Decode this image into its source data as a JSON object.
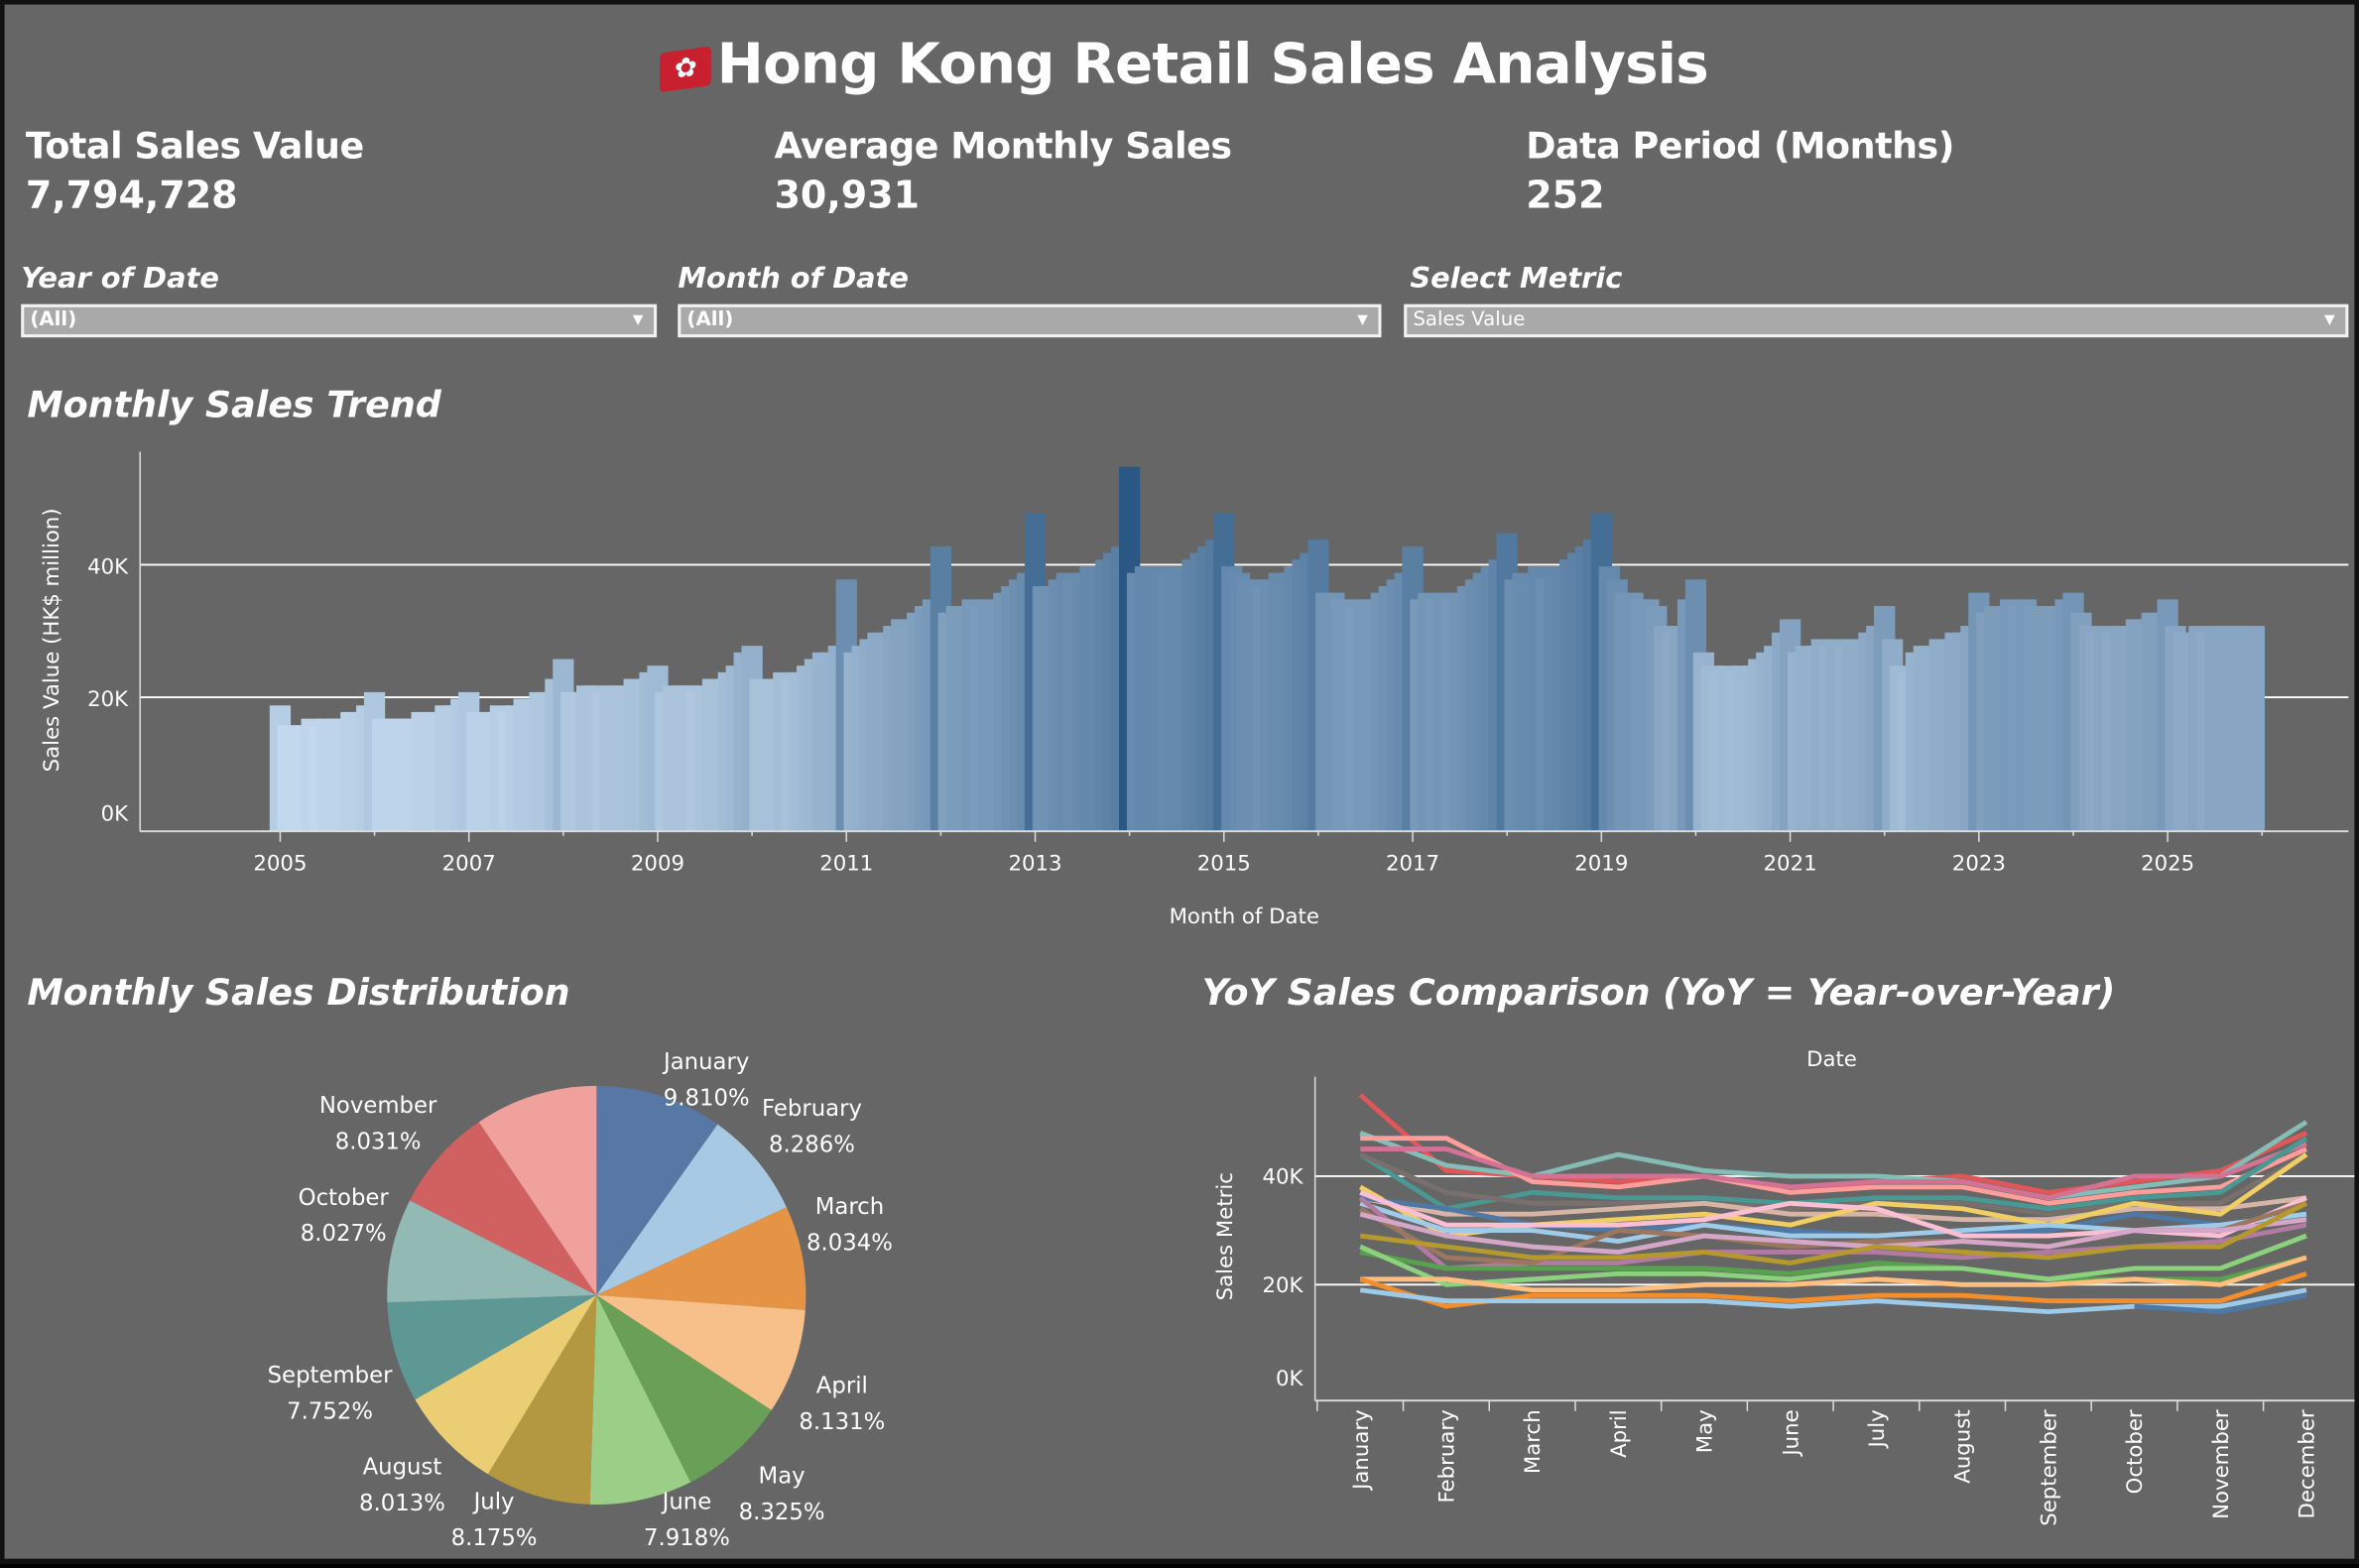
{
  "header": {
    "title": "Hong Kong Retail Sales Analysis",
    "flag_icon": "hong-kong-flag-icon"
  },
  "kpis": [
    {
      "label": "Total Sales Value",
      "value": "7,794,728"
    },
    {
      "label": "Average Monthly Sales",
      "value": "30,931"
    },
    {
      "label": "Data Period (Months)",
      "value": "252"
    }
  ],
  "filters": [
    {
      "label": "Year of Date",
      "value": "(All)"
    },
    {
      "label": "Month of Date",
      "value": "(All)"
    },
    {
      "label": "Select Metric",
      "value": "Sales Value"
    }
  ],
  "trend": {
    "title": "Monthly Sales Trend",
    "chart_data": {
      "type": "bar",
      "xlabel": "Month of Date",
      "ylabel": "Sales Value (HK$ million)",
      "ylim": [
        0,
        57000
      ],
      "yticks": [
        "0K",
        "20K",
        "40K"
      ],
      "xticks": [
        "2005",
        "2007",
        "2009",
        "2011",
        "2013",
        "2015",
        "2017",
        "2019",
        "2021",
        "2023",
        "2025"
      ],
      "grid": true,
      "color_ramp": [
        "#c6dbef",
        "#2a5783"
      ],
      "start_year": 2005,
      "values_k": [
        [
          19,
          16,
          16,
          16,
          17,
          16,
          17,
          17,
          17,
          18,
          18,
          19
        ],
        [
          21,
          17,
          17,
          17,
          17,
          17,
          18,
          18,
          18,
          19,
          19,
          20
        ],
        [
          21,
          18,
          18,
          18,
          19,
          18,
          19,
          20,
          20,
          21,
          21,
          23
        ],
        [
          26,
          21,
          21,
          22,
          22,
          21,
          22,
          22,
          22,
          23,
          23,
          24
        ],
        [
          25,
          21,
          22,
          22,
          22,
          21,
          22,
          23,
          23,
          24,
          25,
          27
        ],
        [
          28,
          23,
          23,
          23,
          24,
          23,
          24,
          25,
          26,
          27,
          27,
          28
        ],
        [
          38,
          27,
          28,
          29,
          30,
          30,
          31,
          32,
          32,
          33,
          34,
          35
        ],
        [
          43,
          33,
          34,
          34,
          35,
          34,
          35,
          35,
          36,
          37,
          38,
          39
        ],
        [
          48,
          37,
          37,
          38,
          39,
          38,
          39,
          40,
          40,
          41,
          42,
          43
        ],
        [
          55,
          39,
          40,
          40,
          40,
          39,
          40,
          40,
          41,
          42,
          43,
          44
        ],
        [
          48,
          40,
          39,
          38,
          38,
          37,
          38,
          39,
          39,
          40,
          41,
          42
        ],
        [
          44,
          36,
          36,
          35,
          35,
          34,
          35,
          35,
          36,
          37,
          38,
          39
        ],
        [
          43,
          35,
          36,
          35,
          36,
          35,
          36,
          37,
          38,
          39,
          40,
          41
        ],
        [
          45,
          38,
          39,
          39,
          40,
          38,
          40,
          40,
          41,
          42,
          43,
          44
        ],
        [
          48,
          40,
          38,
          36,
          36,
          35,
          35,
          34,
          31,
          30,
          31,
          35
        ],
        [
          38,
          27,
          25,
          24,
          25,
          24,
          25,
          25,
          26,
          27,
          28,
          30
        ],
        [
          32,
          27,
          28,
          28,
          29,
          28,
          29,
          28,
          29,
          29,
          30,
          31
        ],
        [
          34,
          29,
          25,
          24,
          27,
          28,
          28,
          29,
          29,
          30,
          30,
          31
        ],
        [
          36,
          33,
          34,
          34,
          35,
          34,
          35,
          34,
          34,
          34,
          34,
          35
        ],
        [
          36,
          33,
          31,
          30,
          31,
          30,
          31,
          31,
          32,
          32,
          33,
          33
        ],
        [
          35,
          31,
          30,
          30,
          31,
          30,
          31,
          31,
          31,
          31,
          31,
          31
        ]
      ]
    }
  },
  "distribution": {
    "title": "Monthly Sales Distribution",
    "chart_data": {
      "type": "pie",
      "slices": [
        {
          "label": "January",
          "pct": "9.810%",
          "value": 9.81,
          "color": "#5778a4"
        },
        {
          "label": "February",
          "pct": "8.286%",
          "value": 8.286,
          "color": "#a8c9e4"
        },
        {
          "label": "March",
          "pct": "8.034%",
          "value": 8.034,
          "color": "#e49444"
        },
        {
          "label": "April",
          "pct": "8.131%",
          "value": 8.131,
          "color": "#f7c08a"
        },
        {
          "label": "May",
          "pct": "8.325%",
          "value": 8.325,
          "color": "#6a9f58"
        },
        {
          "label": "June",
          "pct": "7.918%",
          "value": 7.918,
          "color": "#9bcf88"
        },
        {
          "label": "July",
          "pct": "8.175%",
          "value": 8.175,
          "color": "#b39841"
        },
        {
          "label": "August",
          "pct": "8.013%",
          "value": 8.013,
          "color": "#ebcd74"
        },
        {
          "label": "September",
          "pct": "7.752%",
          "value": 7.752,
          "color": "#5d9894"
        },
        {
          "label": "October",
          "pct": "8.027%",
          "value": 8.027,
          "color": "#93b9b5"
        },
        {
          "label": "November",
          "pct": "8.031%",
          "value": 8.031,
          "color": "#d16160"
        },
        {
          "value": 9.498,
          "color": "#f1a19c"
        }
      ]
    }
  },
  "yoy": {
    "title": "YoY Sales Comparison (YoY = Year-over-Year)",
    "chart_data": {
      "type": "line",
      "title": "Date",
      "ylabel": "Sales Metric",
      "ylim": [
        0,
        57000
      ],
      "yticks": [
        "0K",
        "20K",
        "40K"
      ],
      "categories": [
        "January",
        "February",
        "March",
        "April",
        "May",
        "June",
        "July",
        "August",
        "September",
        "October",
        "November",
        "December"
      ],
      "series": [
        {
          "color": "#e15759",
          "values_k": [
            55,
            41,
            40,
            39,
            40,
            37,
            39,
            40,
            37,
            39,
            41,
            48
          ]
        },
        {
          "color": "#86bcb6",
          "values_k": [
            48,
            42,
            40,
            44,
            41,
            40,
            40,
            39,
            36,
            38,
            40,
            50
          ]
        },
        {
          "color": "#ff9d9a",
          "values_k": [
            47,
            47,
            39,
            38,
            40,
            37,
            38,
            38,
            35,
            37,
            38,
            45
          ]
        },
        {
          "color": "#d37295",
          "values_k": [
            45,
            45,
            40,
            40,
            40,
            38,
            39,
            39,
            36,
            40,
            40,
            46
          ]
        },
        {
          "color": "#499894",
          "values_k": [
            44,
            34,
            37,
            36,
            36,
            35,
            36,
            36,
            34,
            36,
            37,
            47
          ]
        },
        {
          "color": "#79706e",
          "values_k": [
            44,
            37,
            35,
            35,
            35,
            34,
            35,
            35,
            33,
            35,
            35,
            44
          ]
        },
        {
          "color": "#d7b5a6",
          "values_k": [
            36,
            33,
            33,
            34,
            35,
            33,
            33,
            32,
            32,
            34,
            34,
            36
          ]
        },
        {
          "color": "#f1ce63",
          "values_k": [
            38,
            29,
            31,
            32,
            33,
            31,
            35,
            34,
            31,
            35,
            33,
            44
          ]
        },
        {
          "color": "#4e79a7",
          "values_k": [
            36,
            34,
            31,
            30,
            31,
            30,
            29,
            30,
            30,
            33,
            31,
            33
          ]
        },
        {
          "color": "#a0cbe8",
          "values_k": [
            35,
            30,
            30,
            28,
            31,
            29,
            29,
            30,
            31,
            30,
            31,
            33
          ]
        },
        {
          "color": "#fabfd2",
          "values_k": [
            37,
            31,
            31,
            31,
            32,
            35,
            34,
            29,
            29,
            30,
            29,
            36
          ]
        },
        {
          "color": "#b07aa1",
          "values_k": [
            36,
            23,
            24,
            24,
            26,
            26,
            26,
            25,
            26,
            27,
            28,
            31
          ]
        },
        {
          "color": "#9d7660",
          "values_k": [
            34,
            25,
            24,
            30,
            29,
            27,
            28,
            28,
            27,
            30,
            30,
            35
          ]
        },
        {
          "color": "#d4a6c8",
          "values_k": [
            33,
            29,
            27,
            26,
            29,
            28,
            27,
            28,
            27,
            30,
            30,
            32
          ]
        },
        {
          "color": "#b6992d",
          "values_k": [
            29,
            27,
            25,
            25,
            26,
            24,
            27,
            26,
            25,
            27,
            27,
            35
          ]
        },
        {
          "color": "#59a14f",
          "values_k": [
            26,
            23,
            23,
            23,
            23,
            22,
            24,
            23,
            21,
            21,
            21,
            25
          ]
        },
        {
          "color": "#8cd17d",
          "values_k": [
            27,
            20,
            21,
            22,
            22,
            21,
            23,
            23,
            21,
            23,
            23,
            29
          ]
        },
        {
          "color": "#ffbe7d",
          "values_k": [
            21,
            21,
            19,
            19,
            20,
            20,
            21,
            20,
            20,
            21,
            20,
            25
          ]
        },
        {
          "color": "#f28e2b",
          "values_k": [
            21,
            16,
            18,
            18,
            18,
            17,
            18,
            18,
            17,
            17,
            17,
            22
          ]
        },
        {
          "color": "#9ecae9",
          "values_k": [
            19,
            17,
            17,
            17,
            17,
            16,
            17,
            16,
            15,
            16,
            16,
            19
          ]
        },
        {
          "color": "#4e79a7",
          "values_k": [
            null,
            null,
            null,
            null,
            null,
            null,
            null,
            null,
            null,
            16,
            15,
            18
          ]
        }
      ]
    }
  }
}
